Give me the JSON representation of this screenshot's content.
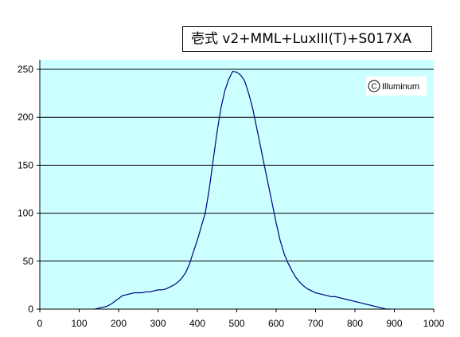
{
  "title": "壱式 v2+MML+LuxIII(T)+S017XA",
  "watermark": "Illuminum",
  "colors": {
    "plot_background": "#CCFFFF",
    "line": "#000080",
    "grid": "#000000",
    "page_background": "#FFFFFF"
  },
  "chart_data": {
    "type": "line",
    "title": "壱式 v2+MML+LuxIII(T)+S017XA",
    "xlabel": "",
    "ylabel": "",
    "xlim": [
      0,
      1000
    ],
    "ylim": [
      0,
      260
    ],
    "x_ticks": [
      0,
      100,
      200,
      300,
      400,
      500,
      600,
      700,
      800,
      900,
      1000
    ],
    "y_ticks": [
      0,
      50,
      100,
      150,
      200,
      250
    ],
    "grid": "horizontal",
    "legend": "none",
    "series": [
      {
        "x": [
          140,
          150,
          160,
          170,
          180,
          190,
          200,
          210,
          220,
          230,
          240,
          250,
          260,
          270,
          280,
          290,
          300,
          310,
          320,
          330,
          340,
          350,
          360,
          370,
          380,
          390,
          400,
          410,
          420,
          430,
          440,
          450,
          460,
          470,
          480,
          490,
          500,
          510,
          520,
          530,
          540,
          550,
          560,
          570,
          580,
          590,
          600,
          610,
          620,
          630,
          640,
          650,
          660,
          670,
          680,
          690,
          700,
          710,
          720,
          730,
          740,
          750,
          760,
          770,
          780,
          790,
          800,
          810,
          820,
          830,
          840,
          850,
          860,
          870,
          880,
          890
        ],
        "values": [
          0,
          1,
          2,
          3,
          5,
          8,
          11,
          14,
          15,
          16,
          17,
          17,
          17,
          18,
          18,
          19,
          20,
          20,
          21,
          23,
          25,
          28,
          32,
          38,
          47,
          60,
          72,
          86,
          100,
          125,
          155,
          185,
          210,
          228,
          240,
          248,
          247,
          244,
          238,
          225,
          210,
          190,
          170,
          150,
          130,
          110,
          90,
          72,
          58,
          48,
          40,
          33,
          28,
          24,
          21,
          19,
          17,
          16,
          15,
          14,
          13,
          13,
          12,
          11,
          10,
          9,
          8,
          7,
          6,
          5,
          4,
          3,
          2,
          1,
          0,
          0
        ]
      }
    ]
  }
}
